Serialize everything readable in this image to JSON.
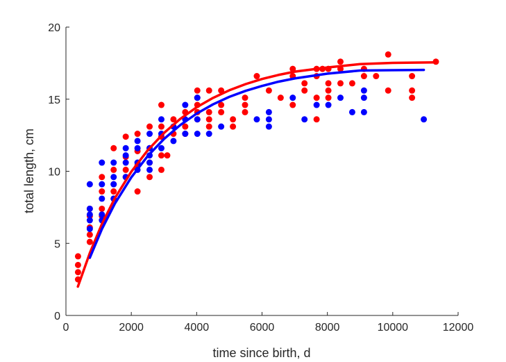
{
  "chart_data": {
    "type": "scatter",
    "title": "",
    "xlabel": "time since birth, d",
    "ylabel": "total length, cm",
    "xlim": [
      0,
      12000
    ],
    "ylim": [
      0,
      20
    ],
    "xticks": [
      "0",
      "2000",
      "4000",
      "6000",
      "8000",
      "10000",
      "12000"
    ],
    "yticks": [
      "0",
      "5",
      "10",
      "15",
      "20"
    ],
    "grid": false,
    "legend": "none",
    "series": [
      {
        "color": "#ff0000",
        "points": [
          [
            370,
            4.1
          ],
          [
            370,
            3.5
          ],
          [
            370,
            3.0
          ],
          [
            370,
            2.5
          ],
          [
            730,
            7.4
          ],
          [
            730,
            6.9
          ],
          [
            730,
            6.1
          ],
          [
            730,
            5.6
          ],
          [
            730,
            5.1
          ],
          [
            1100,
            9.6
          ],
          [
            1100,
            8.6
          ],
          [
            1100,
            7.4
          ],
          [
            1100,
            6.9
          ],
          [
            1460,
            11.6
          ],
          [
            1460,
            10.1
          ],
          [
            1460,
            9.1
          ],
          [
            1460,
            8.6
          ],
          [
            1460,
            8.1
          ],
          [
            1830,
            12.4
          ],
          [
            1830,
            11.0
          ],
          [
            1830,
            10.1
          ],
          [
            1830,
            9.6
          ],
          [
            2190,
            12.6
          ],
          [
            2190,
            11.4
          ],
          [
            2190,
            10.4
          ],
          [
            2190,
            8.6
          ],
          [
            2560,
            13.1
          ],
          [
            2560,
            11.6
          ],
          [
            2560,
            10.6
          ],
          [
            2560,
            9.6
          ],
          [
            2920,
            14.6
          ],
          [
            2920,
            13.1
          ],
          [
            2920,
            12.4
          ],
          [
            2920,
            11.1
          ],
          [
            2920,
            10.1
          ],
          [
            3290,
            13.6
          ],
          [
            3290,
            12.6
          ],
          [
            3100,
            11.1
          ],
          [
            3650,
            14.1
          ],
          [
            3650,
            13.1
          ],
          [
            3650,
            12.6
          ],
          [
            4020,
            15.6
          ],
          [
            4020,
            15.1
          ],
          [
            4020,
            14.6
          ],
          [
            4020,
            14.1
          ],
          [
            4020,
            13.6
          ],
          [
            4380,
            15.6
          ],
          [
            4380,
            14.1
          ],
          [
            4380,
            13.6
          ],
          [
            4380,
            13.1
          ],
          [
            4750,
            15.6
          ],
          [
            4750,
            14.6
          ],
          [
            4750,
            14.1
          ],
          [
            5110,
            13.6
          ],
          [
            5110,
            13.1
          ],
          [
            5480,
            15.1
          ],
          [
            5480,
            14.6
          ],
          [
            5480,
            14.1
          ],
          [
            5840,
            16.6
          ],
          [
            6210,
            15.6
          ],
          [
            6570,
            15.1
          ],
          [
            6940,
            17.1
          ],
          [
            6940,
            16.6
          ],
          [
            6940,
            14.6
          ],
          [
            7300,
            16.1
          ],
          [
            7300,
            15.6
          ],
          [
            7670,
            17.1
          ],
          [
            7670,
            16.6
          ],
          [
            7670,
            15.1
          ],
          [
            7670,
            13.6
          ],
          [
            7850,
            17.1
          ],
          [
            8030,
            17.1
          ],
          [
            8030,
            16.1
          ],
          [
            8030,
            15.6
          ],
          [
            8030,
            15.1
          ],
          [
            8400,
            17.6
          ],
          [
            8400,
            17.1
          ],
          [
            8400,
            16.1
          ],
          [
            8760,
            16.1
          ],
          [
            9120,
            17.1
          ],
          [
            9120,
            16.6
          ],
          [
            9490,
            16.6
          ],
          [
            9860,
            18.1
          ],
          [
            9860,
            15.6
          ],
          [
            10590,
            16.6
          ],
          [
            10590,
            15.6
          ],
          [
            10590,
            15.1
          ],
          [
            11320,
            17.6
          ]
        ],
        "fit": [
          [
            365,
            2.0
          ],
          [
            730,
            4.33
          ],
          [
            1100,
            6.34
          ],
          [
            1500,
            8.14
          ],
          [
            2000,
            9.97
          ],
          [
            2500,
            11.45
          ],
          [
            3000,
            12.66
          ],
          [
            3500,
            13.64
          ],
          [
            4000,
            14.44
          ],
          [
            4500,
            15.09
          ],
          [
            5000,
            15.62
          ],
          [
            5500,
            16.05
          ],
          [
            6000,
            16.4
          ],
          [
            6500,
            16.68
          ],
          [
            7000,
            16.91
          ],
          [
            8000,
            17.2
          ],
          [
            9000,
            17.43
          ],
          [
            10000,
            17.52
          ],
          [
            11300,
            17.55
          ]
        ]
      },
      {
        "color": "#0000ff",
        "points": [
          [
            730,
            9.1
          ],
          [
            730,
            7.4
          ],
          [
            730,
            7.0
          ],
          [
            730,
            6.6
          ],
          [
            730,
            6.0
          ],
          [
            1100,
            10.6
          ],
          [
            1100,
            9.1
          ],
          [
            1100,
            8.1
          ],
          [
            1100,
            7.0
          ],
          [
            1100,
            6.6
          ],
          [
            1460,
            10.6
          ],
          [
            1460,
            9.6
          ],
          [
            1460,
            9.1
          ],
          [
            1460,
            8.1
          ],
          [
            1830,
            11.6
          ],
          [
            1830,
            11.1
          ],
          [
            1830,
            10.6
          ],
          [
            1830,
            9.6
          ],
          [
            2190,
            12.1
          ],
          [
            2190,
            11.6
          ],
          [
            2190,
            10.6
          ],
          [
            2190,
            10.1
          ],
          [
            2560,
            12.6
          ],
          [
            2560,
            11.6
          ],
          [
            2560,
            11.1
          ],
          [
            2560,
            10.6
          ],
          [
            2560,
            10.1
          ],
          [
            2920,
            13.6
          ],
          [
            2920,
            12.6
          ],
          [
            2920,
            11.6
          ],
          [
            3290,
            13.1
          ],
          [
            3290,
            12.1
          ],
          [
            3650,
            14.6
          ],
          [
            3650,
            13.6
          ],
          [
            3650,
            12.6
          ],
          [
            4020,
            15.1
          ],
          [
            4020,
            13.6
          ],
          [
            4020,
            12.6
          ],
          [
            4380,
            12.6
          ],
          [
            4750,
            13.1
          ],
          [
            5840,
            13.6
          ],
          [
            6210,
            14.1
          ],
          [
            6210,
            13.6
          ],
          [
            6210,
            13.1
          ],
          [
            6940,
            15.1
          ],
          [
            7300,
            13.6
          ],
          [
            7670,
            14.6
          ],
          [
            8030,
            14.6
          ],
          [
            8400,
            15.1
          ],
          [
            8760,
            14.1
          ],
          [
            9120,
            15.6
          ],
          [
            9120,
            15.1
          ],
          [
            9120,
            14.1
          ],
          [
            10950,
            13.6
          ]
        ],
        "fit": [
          [
            730,
            4.0
          ],
          [
            1100,
            5.99
          ],
          [
            1500,
            7.77
          ],
          [
            2000,
            9.58
          ],
          [
            2500,
            11.05
          ],
          [
            3000,
            12.24
          ],
          [
            3500,
            13.21
          ],
          [
            4000,
            14.0
          ],
          [
            4500,
            14.64
          ],
          [
            5000,
            15.16
          ],
          [
            5500,
            15.58
          ],
          [
            6000,
            15.92
          ],
          [
            6500,
            16.21
          ],
          [
            7000,
            16.44
          ],
          [
            8000,
            16.77
          ],
          [
            9000,
            16.99
          ],
          [
            10000,
            17.01
          ],
          [
            10950,
            17.03
          ]
        ]
      }
    ]
  }
}
